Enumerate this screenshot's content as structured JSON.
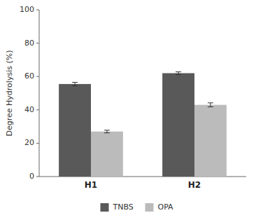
{
  "chart_data": {
    "type": "bar",
    "categories": [
      "H1",
      "H2"
    ],
    "series": [
      {
        "name": "TNBS",
        "color": "#595959",
        "values": [
          55.5,
          62.0
        ],
        "errors": [
          1.0,
          0.8
        ]
      },
      {
        "name": "OPA",
        "color": "#bbbbbb",
        "values": [
          27.0,
          43.0
        ],
        "errors": [
          0.8,
          1.2
        ]
      }
    ],
    "y_label": "Degree Hydrolysis (%)",
    "ylim": [
      0,
      100
    ],
    "yticks": [
      0,
      20,
      40,
      60,
      80,
      100
    ],
    "grid": false,
    "legend": "bottom"
  }
}
